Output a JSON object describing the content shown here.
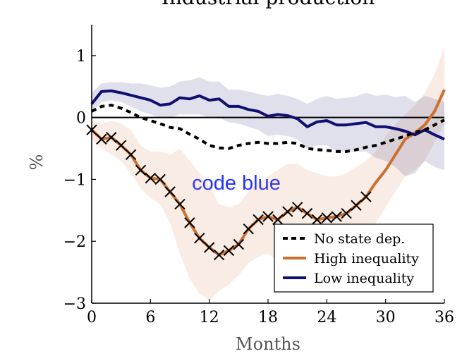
{
  "chart_data": {
    "type": "line",
    "title": "Industrial production",
    "xlabel": "Months",
    "ylabel": "%",
    "xlim": [
      0,
      36
    ],
    "ylim": [
      -3,
      1.5
    ],
    "x_ticks": [
      0,
      6,
      12,
      18,
      24,
      30,
      36
    ],
    "x_tick_labels": [
      "0",
      "6",
      "12",
      "18",
      "24",
      "30",
      "36"
    ],
    "y_ticks": [
      1,
      0,
      -1,
      -2,
      -3
    ],
    "y_tick_labels": [
      "1",
      "0",
      "−1",
      "−2",
      "−3"
    ],
    "zero_line": true,
    "grid": false,
    "legend_position": "bottom-right",
    "annotation": "code blue",
    "annotation_color": "#2233ff",
    "x": [
      0,
      1,
      2,
      3,
      4,
      5,
      6,
      7,
      8,
      9,
      10,
      11,
      12,
      13,
      14,
      15,
      16,
      17,
      18,
      19,
      20,
      21,
      22,
      23,
      24,
      25,
      26,
      27,
      28,
      29,
      30,
      31,
      32,
      33,
      34,
      35,
      36
    ],
    "series": [
      {
        "name": "No state dep.",
        "color": "#000000",
        "style": "dashed",
        "values": [
          0.1,
          0.18,
          0.2,
          0.15,
          0.08,
          0.0,
          -0.05,
          -0.1,
          -0.16,
          -0.18,
          -0.27,
          -0.35,
          -0.45,
          -0.49,
          -0.5,
          -0.45,
          -0.42,
          -0.4,
          -0.42,
          -0.42,
          -0.4,
          -0.42,
          -0.5,
          -0.52,
          -0.53,
          -0.55,
          -0.55,
          -0.52,
          -0.48,
          -0.45,
          -0.4,
          -0.35,
          -0.3,
          -0.24,
          -0.2,
          -0.12,
          -0.04
        ]
      },
      {
        "name": "High inequality",
        "color": "#cc7030",
        "style": "solid",
        "markers": "x",
        "marker_x": [
          0,
          1,
          2,
          3,
          4,
          5,
          6,
          7,
          8,
          9,
          10,
          11,
          12,
          13,
          14,
          15,
          16,
          17,
          18,
          19,
          20,
          21,
          22,
          23,
          24,
          25,
          26,
          27,
          28
        ],
        "values": [
          -0.2,
          -0.35,
          -0.32,
          -0.45,
          -0.6,
          -0.85,
          -0.98,
          -1.0,
          -1.2,
          -1.4,
          -1.7,
          -1.95,
          -2.1,
          -2.22,
          -2.15,
          -2.05,
          -1.8,
          -1.65,
          -1.6,
          -1.65,
          -1.52,
          -1.45,
          -1.55,
          -1.65,
          -1.62,
          -1.6,
          -1.55,
          -1.42,
          -1.28,
          -1.05,
          -0.85,
          -0.6,
          -0.35,
          -0.25,
          -0.12,
          0.1,
          0.45
        ],
        "band_upper": [
          -0.05,
          -0.1,
          -0.05,
          -0.1,
          -0.2,
          -0.45,
          -0.55,
          -0.55,
          -0.6,
          -0.5,
          -0.7,
          -0.9,
          -1.1,
          -1.4,
          -1.45,
          -1.4,
          -1.2,
          -1.05,
          -0.95,
          -0.85,
          -0.75,
          -0.75,
          -0.85,
          -0.9,
          -0.95,
          -0.95,
          -0.9,
          -0.8,
          -0.7,
          -0.55,
          -0.3,
          -0.1,
          0.05,
          0.2,
          0.4,
          0.7,
          1.15
        ],
        "band_lower": [
          -0.35,
          -0.5,
          -0.6,
          -0.7,
          -0.9,
          -1.15,
          -1.3,
          -1.4,
          -1.7,
          -2.2,
          -2.6,
          -2.85,
          -2.95,
          -2.8,
          -2.7,
          -2.55,
          -2.35,
          -2.25,
          -2.2,
          -2.3,
          -2.25,
          -2.2,
          -2.3,
          -2.35,
          -2.3,
          -2.25,
          -2.2,
          -2.05,
          -1.9,
          -1.7,
          -1.45,
          -1.2,
          -0.95,
          -0.85,
          -0.7,
          -0.4,
          -0.1
        ]
      },
      {
        "name": "Low inequality",
        "color": "#101070",
        "style": "solid",
        "values": [
          0.22,
          0.42,
          0.43,
          0.4,
          0.36,
          0.32,
          0.28,
          0.2,
          0.22,
          0.32,
          0.3,
          0.35,
          0.28,
          0.3,
          0.18,
          0.18,
          0.13,
          0.1,
          0.02,
          0.05,
          0.03,
          -0.02,
          -0.15,
          -0.07,
          -0.05,
          -0.12,
          -0.12,
          -0.1,
          -0.08,
          -0.15,
          -0.15,
          -0.18,
          -0.22,
          -0.28,
          -0.2,
          -0.28,
          -0.35
        ],
        "band_upper": [
          0.4,
          0.55,
          0.57,
          0.57,
          0.55,
          0.55,
          0.52,
          0.48,
          0.5,
          0.58,
          0.6,
          0.65,
          0.58,
          0.58,
          0.45,
          0.45,
          0.42,
          0.38,
          0.35,
          0.38,
          0.35,
          0.3,
          0.22,
          0.3,
          0.35,
          0.3,
          0.32,
          0.34,
          0.4,
          0.35,
          0.37,
          0.33,
          0.35,
          0.25,
          0.35,
          0.3,
          0.25
        ],
        "band_lower": [
          0.05,
          0.25,
          0.28,
          0.25,
          0.18,
          0.1,
          0.05,
          0.0,
          0.0,
          0.05,
          0.05,
          0.05,
          0.0,
          0.0,
          -0.08,
          -0.1,
          -0.15,
          -0.2,
          -0.3,
          -0.28,
          -0.3,
          -0.35,
          -0.5,
          -0.45,
          -0.45,
          -0.55,
          -0.55,
          -0.55,
          -0.55,
          -0.65,
          -0.7,
          -0.8,
          -0.95,
          -0.9,
          -0.7,
          -0.8,
          -0.85
        ]
      }
    ]
  }
}
